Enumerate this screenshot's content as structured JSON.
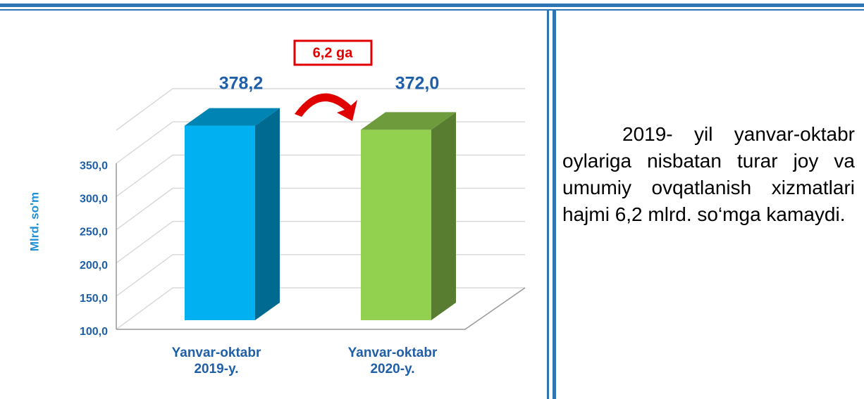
{
  "chart_data": {
    "type": "bar3d",
    "categories": [
      "Yanvar-oktabr 2019-y.",
      "Yanvar-oktabr 2020-y."
    ],
    "values": [
      378.2,
      372.0
    ],
    "value_labels": [
      "378,2",
      "372,0"
    ],
    "colors": [
      "#00b0f0",
      "#92d050"
    ],
    "y_axis_label": "Mlrd. so'm",
    "annotation": "6,2 ga",
    "ylim": [
      100,
      400
    ],
    "yticks": [
      {
        "value": 100,
        "label": "100,0"
      },
      {
        "value": 150,
        "label": "150,0"
      },
      {
        "value": 200,
        "label": "200,0"
      },
      {
        "value": 250,
        "label": "250,0"
      },
      {
        "value": 300,
        "label": "300,0"
      },
      {
        "value": 350,
        "label": "350,0"
      }
    ],
    "grid": true
  },
  "text": "2019- yil yanvar-oktabr oylariga nisbatan turar joy va umumiy ovqatlanish xizmatlari hajmi 6,2 mlrd. so‘mga kamaydi."
}
